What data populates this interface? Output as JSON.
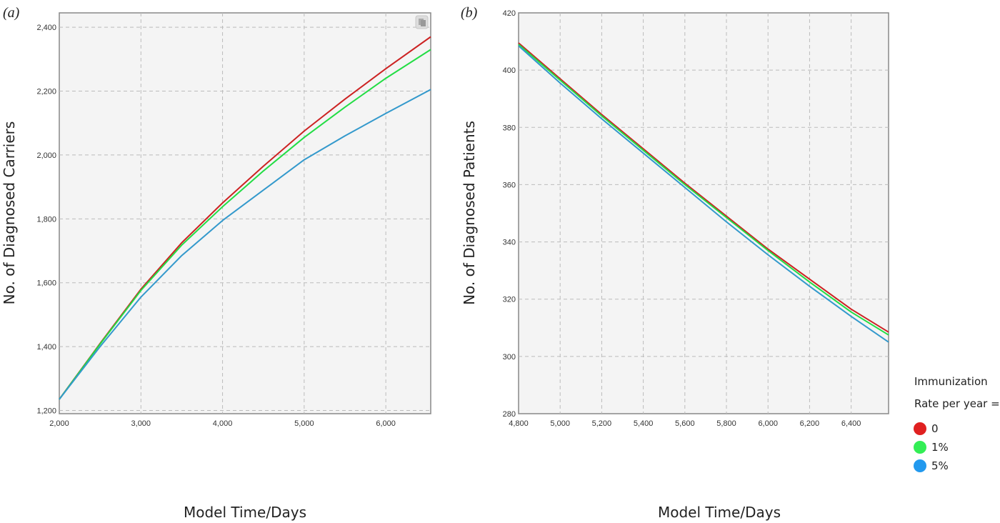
{
  "chart_data": [
    {
      "type": "line",
      "panel_label": "(a)",
      "xlabel": "Model Time/Days",
      "ylabel": "No. of Diagnosed Carriers",
      "xlim": [
        2000,
        6550
      ],
      "ylim": [
        1190,
        2445
      ],
      "x_ticks": [
        2000,
        3000,
        4000,
        5000,
        6000
      ],
      "x_tick_labels": [
        "2,000",
        "3,000",
        "4,000",
        "5,000",
        "6,000"
      ],
      "y_ticks": [
        1200,
        1400,
        1600,
        1800,
        2000,
        2200,
        2400
      ],
      "y_tick_labels": [
        "1,200",
        "1,400",
        "1,600",
        "1,800",
        "2,000",
        "2,200",
        "2,400"
      ],
      "grid": true,
      "corner_icon": "copy-icon",
      "series": [
        {
          "name": "0",
          "color": "#cc2222",
          "x": [
            2000,
            2500,
            3000,
            3500,
            4000,
            4500,
            5000,
            5500,
            6000,
            6550
          ],
          "y": [
            1235,
            1410,
            1580,
            1725,
            1850,
            1965,
            2075,
            2175,
            2270,
            2370
          ]
        },
        {
          "name": "1%",
          "color": "#22dd44",
          "x": [
            2000,
            2500,
            3000,
            3500,
            4000,
            4500,
            5000,
            5500,
            6000,
            6550
          ],
          "y": [
            1235,
            1408,
            1576,
            1718,
            1838,
            1950,
            2055,
            2150,
            2240,
            2330
          ]
        },
        {
          "name": "5%",
          "color": "#3399cc",
          "x": [
            2000,
            2500,
            3000,
            3500,
            4000,
            4500,
            5000,
            5500,
            6000,
            6550
          ],
          "y": [
            1235,
            1400,
            1555,
            1685,
            1795,
            1890,
            1985,
            2060,
            2130,
            2205
          ]
        }
      ]
    },
    {
      "type": "line",
      "panel_label": "(b)",
      "xlabel": "Model Time/Days",
      "ylabel": "No. of Diagnosed Patients",
      "xlim": [
        4800,
        6580
      ],
      "ylim": [
        280,
        420
      ],
      "x_ticks": [
        4800,
        5000,
        5200,
        5400,
        5600,
        5800,
        6000,
        6200,
        6400
      ],
      "x_tick_labels": [
        "4,800",
        "5,000",
        "5,200",
        "5,400",
        "5,600",
        "5,800",
        "6,000",
        "6,200",
        "6,400"
      ],
      "y_ticks": [
        280,
        300,
        320,
        340,
        360,
        380,
        400,
        420
      ],
      "y_tick_labels": [
        "280",
        "300",
        "320",
        "340",
        "360",
        "380",
        "400",
        "420"
      ],
      "grid": true,
      "series": [
        {
          "name": "0",
          "color": "#cc2222",
          "x": [
            4800,
            5000,
            5200,
            5400,
            5600,
            5800,
            6000,
            6200,
            6400,
            6580
          ],
          "y": [
            409.5,
            397,
            384.5,
            372.5,
            360.5,
            349,
            337.5,
            327,
            316.5,
            308.5
          ]
        },
        {
          "name": "1%",
          "color": "#22dd44",
          "x": [
            4800,
            5000,
            5200,
            5400,
            5600,
            5800,
            6000,
            6200,
            6400,
            6580
          ],
          "y": [
            409,
            396.5,
            384,
            372,
            360,
            348.5,
            337,
            326,
            315.5,
            307.5
          ]
        },
        {
          "name": "5%",
          "color": "#3399cc",
          "x": [
            4800,
            5000,
            5200,
            5400,
            5600,
            5800,
            6000,
            6200,
            6400,
            6580
          ],
          "y": [
            408.5,
            395.5,
            383,
            371,
            359,
            347,
            335.5,
            324.5,
            314,
            305
          ]
        }
      ]
    }
  ],
  "legend": {
    "title_line1": "Immunization",
    "title_line2": "Rate per year =",
    "entries": [
      {
        "label": "0",
        "color": "#e02020"
      },
      {
        "label": "1%",
        "color": "#33ee55"
      },
      {
        "label": "5%",
        "color": "#2299ee"
      }
    ]
  }
}
